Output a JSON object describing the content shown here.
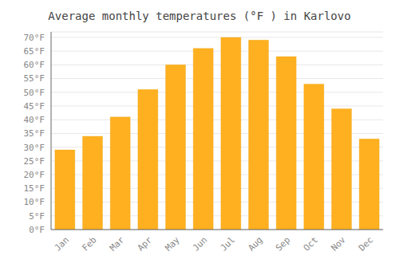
{
  "chart_data": {
    "type": "bar",
    "title": "Average monthly temperatures (°F ) in Karlovo",
    "categories": [
      "Jan",
      "Feb",
      "Mar",
      "Apr",
      "May",
      "Jun",
      "Jul",
      "Aug",
      "Sep",
      "Oct",
      "Nov",
      "Dec"
    ],
    "values": [
      29,
      34,
      41,
      51,
      60,
      66,
      70,
      69,
      63,
      53,
      44,
      33
    ],
    "color": "#FFB020",
    "ylim": [
      0,
      72
    ],
    "yticks": [
      {
        "value": 0,
        "label": "0°F"
      },
      {
        "value": 5,
        "label": "5°F"
      },
      {
        "value": 10,
        "label": "10°F"
      },
      {
        "value": 15,
        "label": "15°F"
      },
      {
        "value": 20,
        "label": "20°F"
      },
      {
        "value": 25,
        "label": "25°F"
      },
      {
        "value": 30,
        "label": "30°F"
      },
      {
        "value": 35,
        "label": "35°F"
      },
      {
        "value": 40,
        "label": "40°F"
      },
      {
        "value": 45,
        "label": "45°F"
      },
      {
        "value": 50,
        "label": "50°F"
      },
      {
        "value": 55,
        "label": "55°F"
      },
      {
        "value": 60,
        "label": "60°F"
      },
      {
        "value": 65,
        "label": "65°F"
      },
      {
        "value": 70,
        "label": "70°F"
      }
    ],
    "grid": true
  }
}
